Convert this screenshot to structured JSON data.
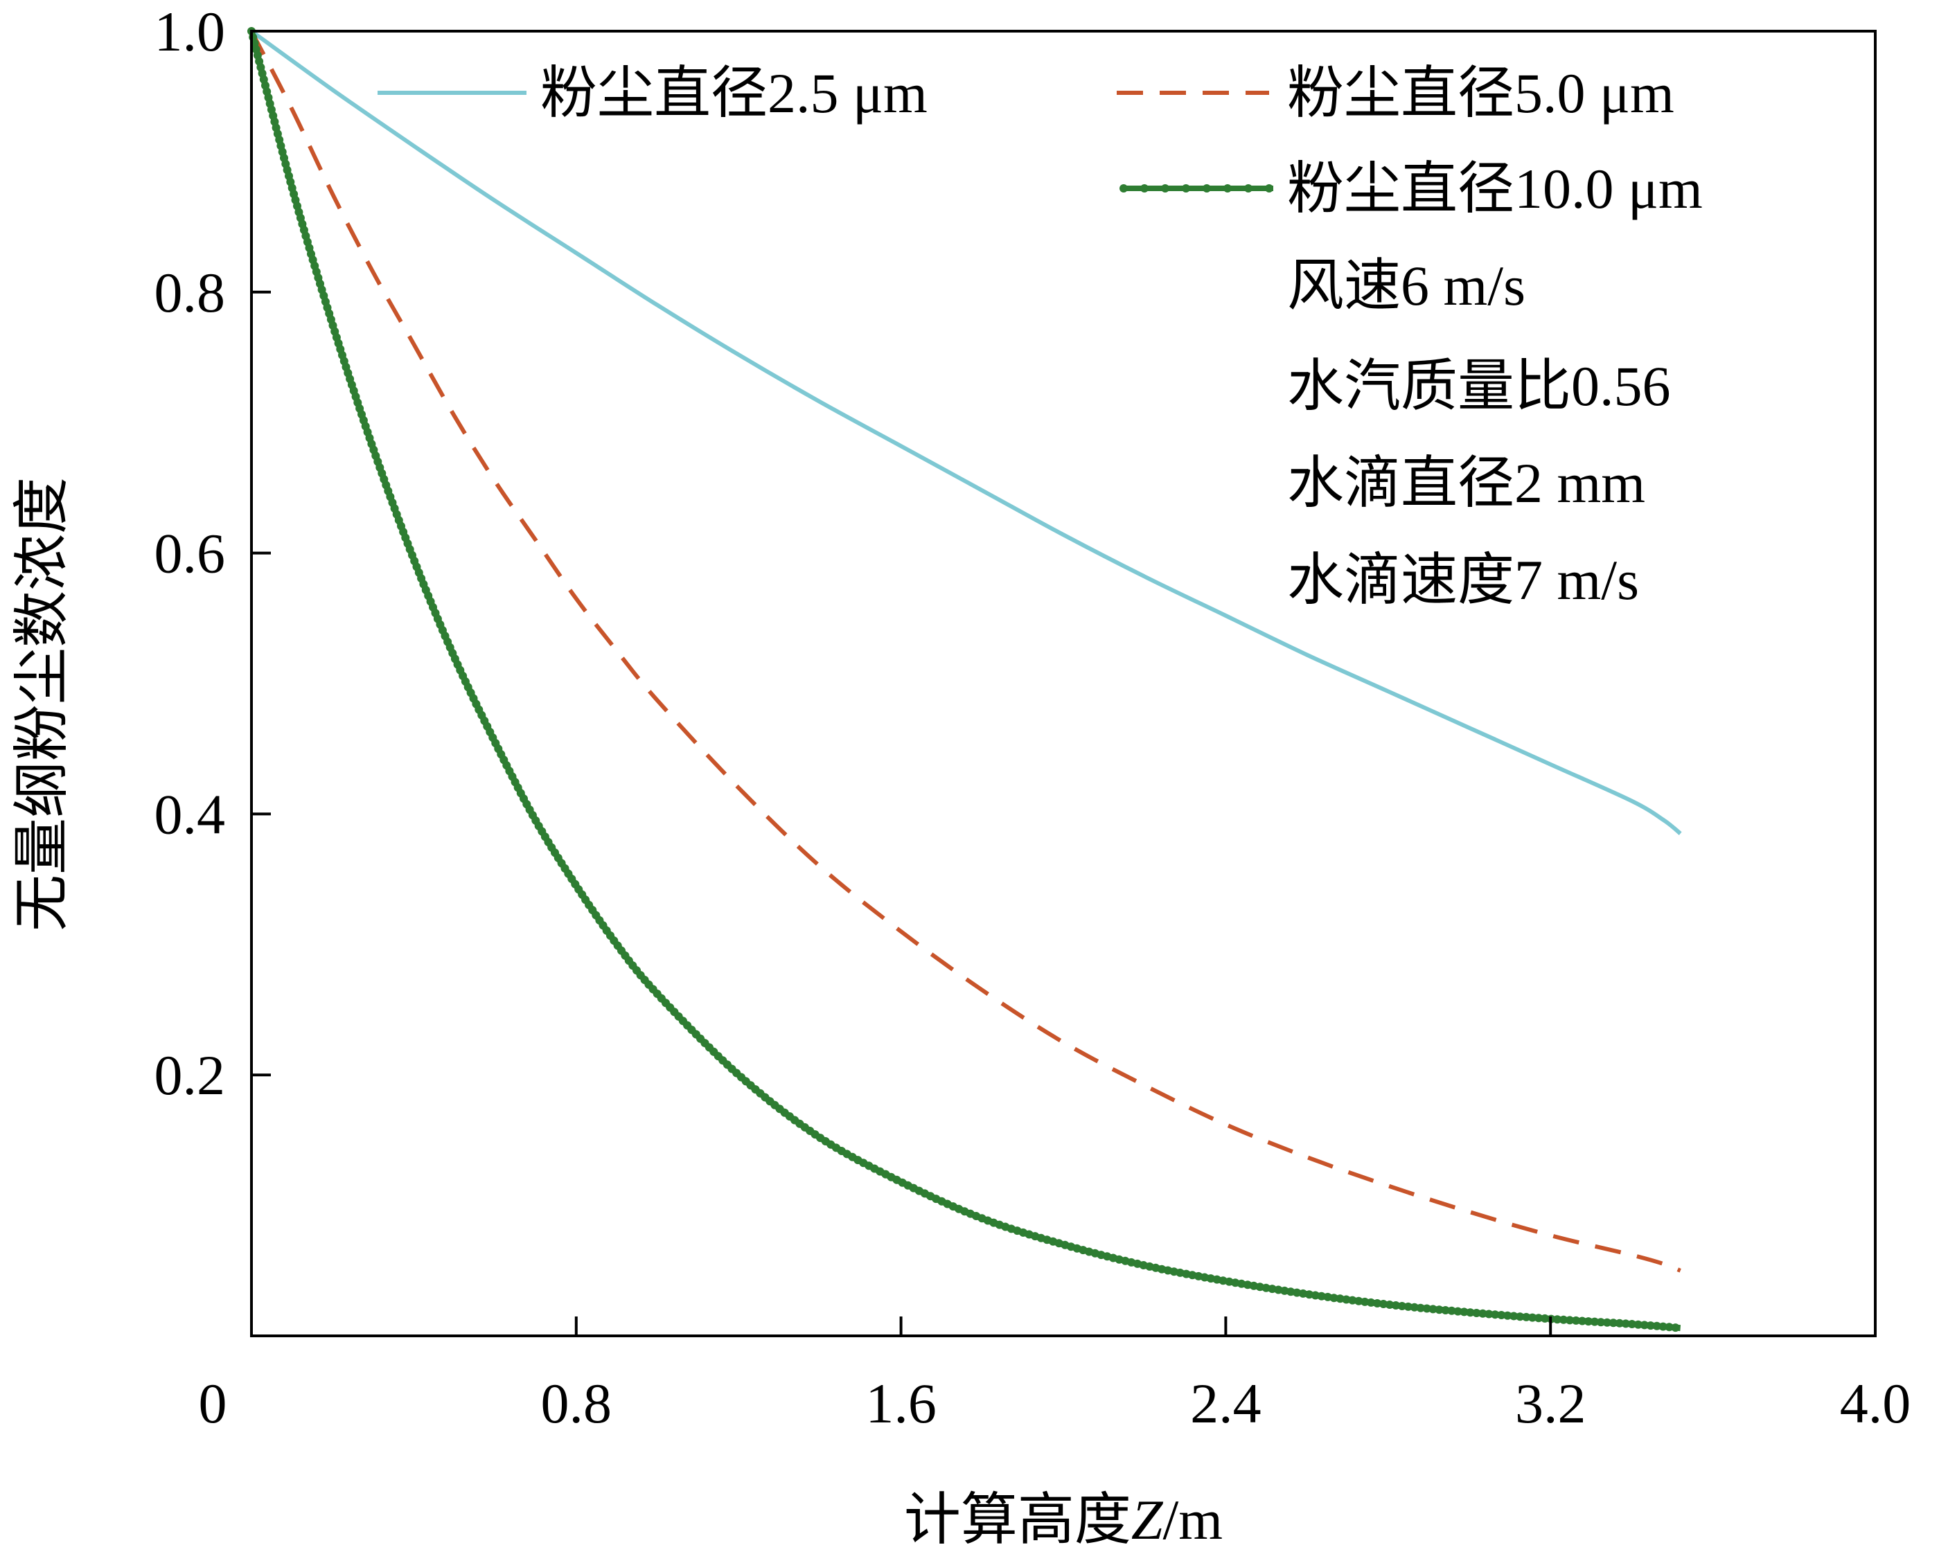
{
  "chart_data": {
    "type": "line",
    "xlabel_prefix": "计算高度",
    "xlabel_var": "Z",
    "xlabel_unit": "/m",
    "ylabel": "无量纲粉尘数浓度",
    "xlim": [
      0,
      4.0
    ],
    "ylim": [
      0,
      1.0
    ],
    "xticks": [
      0,
      0.8,
      1.6,
      2.4,
      3.2,
      4.0
    ],
    "xtick_labels": [
      "0",
      "0.8",
      "1.6",
      "2.4",
      "3.2",
      "4.0"
    ],
    "yticks": [
      0.2,
      0.4,
      0.6,
      0.8,
      1.0
    ],
    "ytick_labels": [
      "0.2",
      "0.4",
      "0.6",
      "0.8",
      "1.0"
    ],
    "grid": false,
    "legend_position": "top-right",
    "series": [
      {
        "name": "粉尘直径2.5 μm",
        "color": "#7ec8d3",
        "style": "solid",
        "x": [
          0.0,
          0.2,
          0.4,
          0.6,
          0.8,
          1.0,
          1.2,
          1.4,
          1.6,
          1.8,
          2.0,
          2.2,
          2.4,
          2.6,
          2.8,
          3.0,
          3.2,
          3.4,
          3.48,
          3.52
        ],
        "y": [
          1.0,
          0.955,
          0.912,
          0.87,
          0.83,
          0.79,
          0.752,
          0.716,
          0.682,
          0.648,
          0.614,
          0.582,
          0.552,
          0.522,
          0.494,
          0.466,
          0.438,
          0.41,
          0.395,
          0.385
        ]
      },
      {
        "name": "粉尘直径5.0 μm",
        "color": "#c8542a",
        "style": "dashed",
        "x": [
          0.0,
          0.1,
          0.2,
          0.3,
          0.4,
          0.5,
          0.6,
          0.7,
          0.8,
          0.9,
          1.0,
          1.2,
          1.4,
          1.6,
          1.8,
          2.0,
          2.2,
          2.4,
          2.6,
          2.8,
          3.0,
          3.2,
          3.4,
          3.48,
          3.52
        ],
        "y": [
          1.0,
          0.94,
          0.875,
          0.815,
          0.76,
          0.705,
          0.655,
          0.61,
          0.565,
          0.525,
          0.487,
          0.42,
          0.36,
          0.31,
          0.265,
          0.225,
          0.192,
          0.162,
          0.137,
          0.115,
          0.095,
          0.077,
          0.062,
          0.055,
          0.05
        ]
      },
      {
        "name": "粉尘直径10.0 μm",
        "color": "#2e7d32",
        "style": "solid-marker",
        "x": [
          0.0,
          0.1,
          0.2,
          0.3,
          0.4,
          0.5,
          0.6,
          0.7,
          0.8,
          0.9,
          1.0,
          1.2,
          1.4,
          1.6,
          1.8,
          2.0,
          2.2,
          2.4,
          2.6,
          2.8,
          3.0,
          3.2,
          3.4,
          3.52
        ],
        "y": [
          1.0,
          0.88,
          0.775,
          0.68,
          0.595,
          0.52,
          0.455,
          0.395,
          0.345,
          0.3,
          0.262,
          0.2,
          0.152,
          0.118,
          0.09,
          0.07,
          0.054,
          0.042,
          0.032,
          0.024,
          0.018,
          0.013,
          0.009,
          0.006
        ]
      }
    ],
    "annotations": [
      "风速6 m/s",
      "水汽质量比0.56",
      "水滴直径2 mm",
      "水滴速度7 m/s"
    ]
  }
}
